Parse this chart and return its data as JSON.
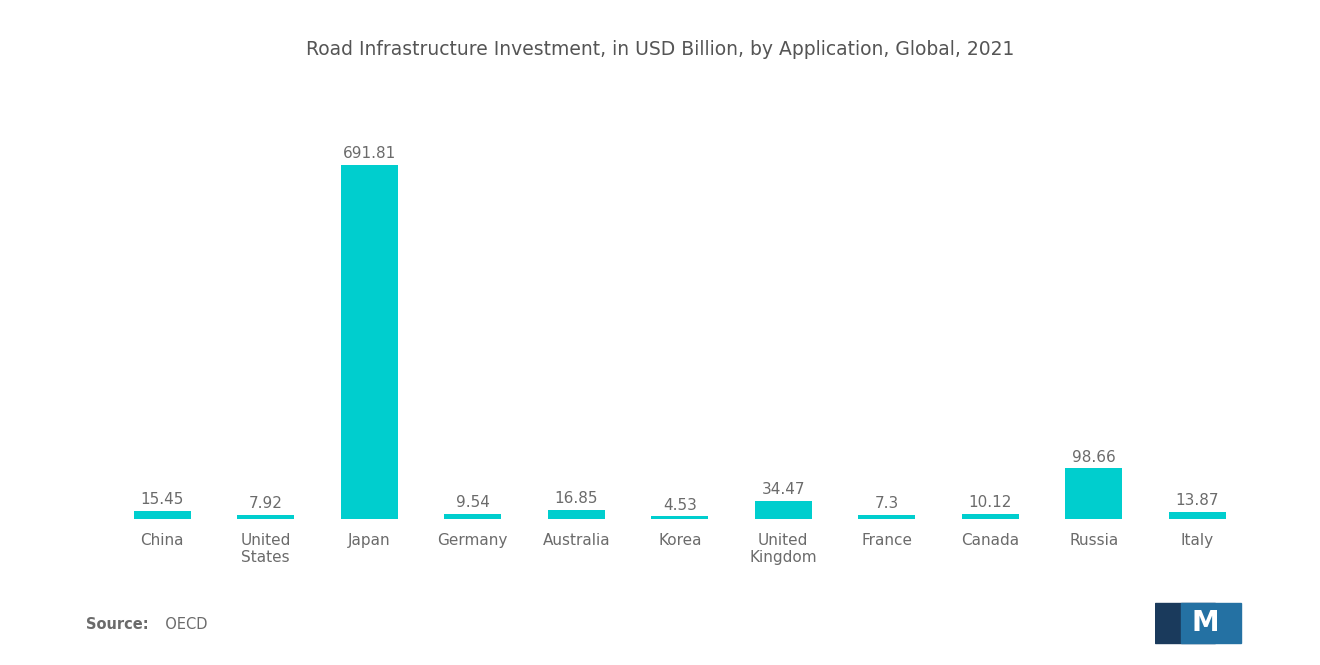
{
  "title": "Road Infrastructure Investment, in USD Billion, by Application, Global, 2021",
  "categories": [
    "China",
    "United\nStates",
    "Japan",
    "Germany",
    "Australia",
    "Korea",
    "United\nKingdom",
    "France",
    "Canada",
    "Russia",
    "Italy"
  ],
  "values": [
    15.45,
    7.92,
    691.81,
    9.54,
    16.85,
    4.53,
    34.47,
    7.3,
    10.12,
    98.66,
    13.87
  ],
  "bar_color": "#00CECE",
  "text_color": "#6b6b6b",
  "title_color": "#555555",
  "source_bold": "Source:",
  "source_normal": "  OECD",
  "background_color": "#ffffff",
  "bar_width": 0.55,
  "value_labels": [
    "15.45",
    "7.92",
    "691.81",
    "9.54",
    "16.85",
    "4.53",
    "34.47",
    "7.3",
    "10.12",
    "98.66",
    "13.87"
  ],
  "ylim": 780,
  "logo_colors": [
    "#1a3a5c",
    "#2471a3",
    "#5dade2"
  ],
  "title_fontsize": 13.5,
  "label_fontsize": 11,
  "tick_fontsize": 11
}
